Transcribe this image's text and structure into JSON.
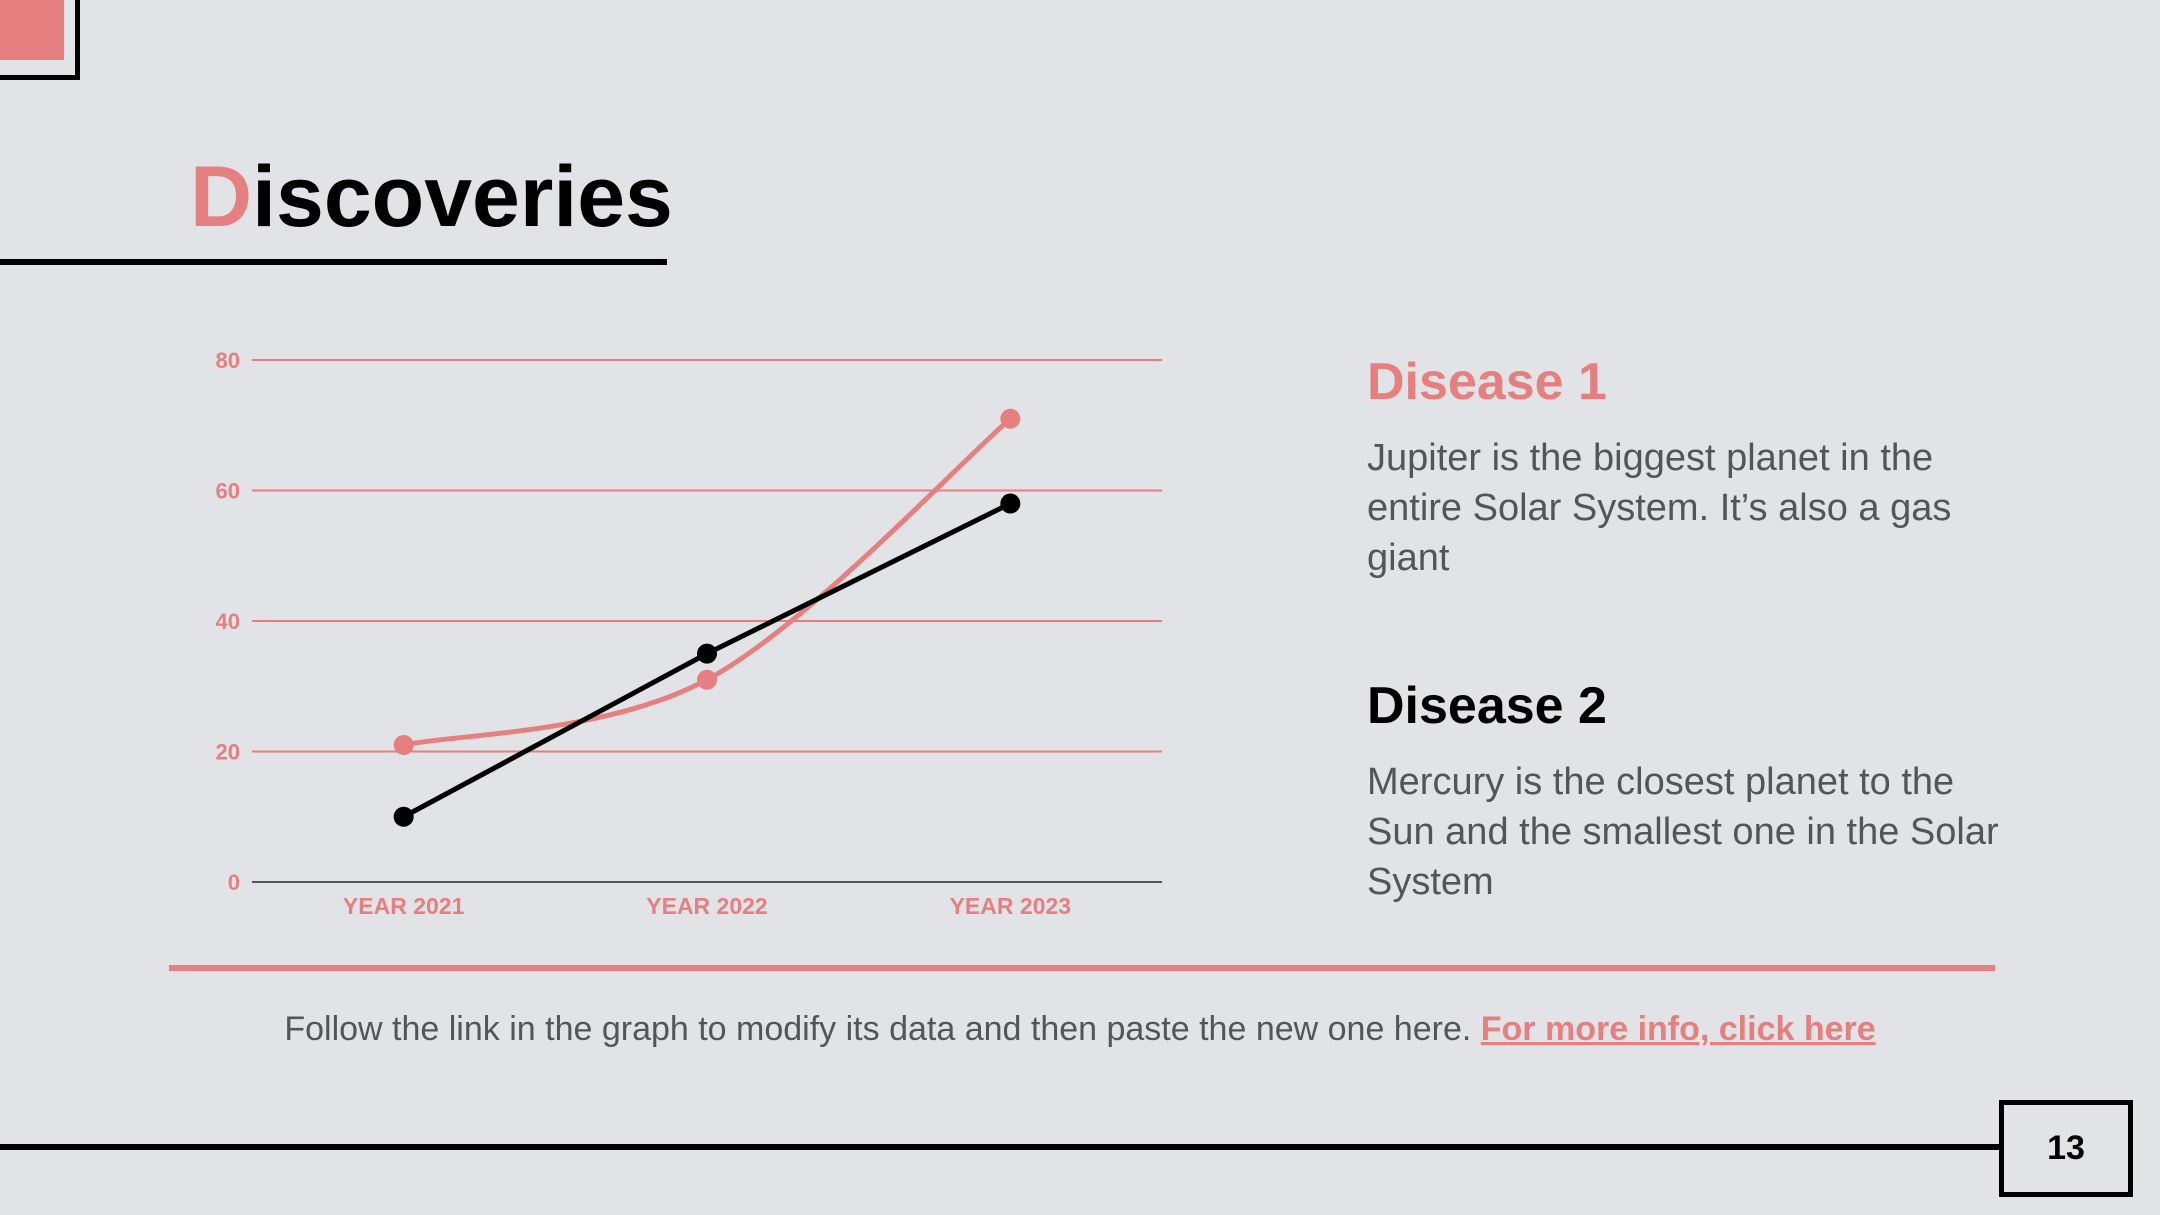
{
  "slide": {
    "title_first": "D",
    "title_rest": "iscoveries",
    "disease1": {
      "heading": "Disease 1",
      "text": "Jupiter is the biggest planet in the entire Solar System. It’s also a gas giant"
    },
    "disease2": {
      "heading": "Disease 2",
      "text": "Mercury is the closest planet to the Sun and the smallest one in the Solar System"
    },
    "footer_text": "Follow the link in the graph to modify its data and then paste the new one here.",
    "footer_link": "For more info, click here",
    "page_number": "13"
  },
  "colors": {
    "accent": "#e67f7f",
    "dark": "#000000",
    "background": "#e2e3e6",
    "body_text": "#555555"
  },
  "chart_data": {
    "type": "line",
    "categories": [
      "YEAR 2021",
      "YEAR 2022",
      "YEAR 2023"
    ],
    "series": [
      {
        "color": "#e67f7f",
        "smooth": true,
        "values": [
          21,
          31,
          71
        ]
      },
      {
        "color": "#000000",
        "smooth": false,
        "values": [
          10,
          35,
          58
        ]
      }
    ],
    "ylim": [
      0,
      80
    ],
    "yticks": [
      0,
      20,
      40,
      60,
      80
    ],
    "grid": true,
    "legend": "none"
  }
}
